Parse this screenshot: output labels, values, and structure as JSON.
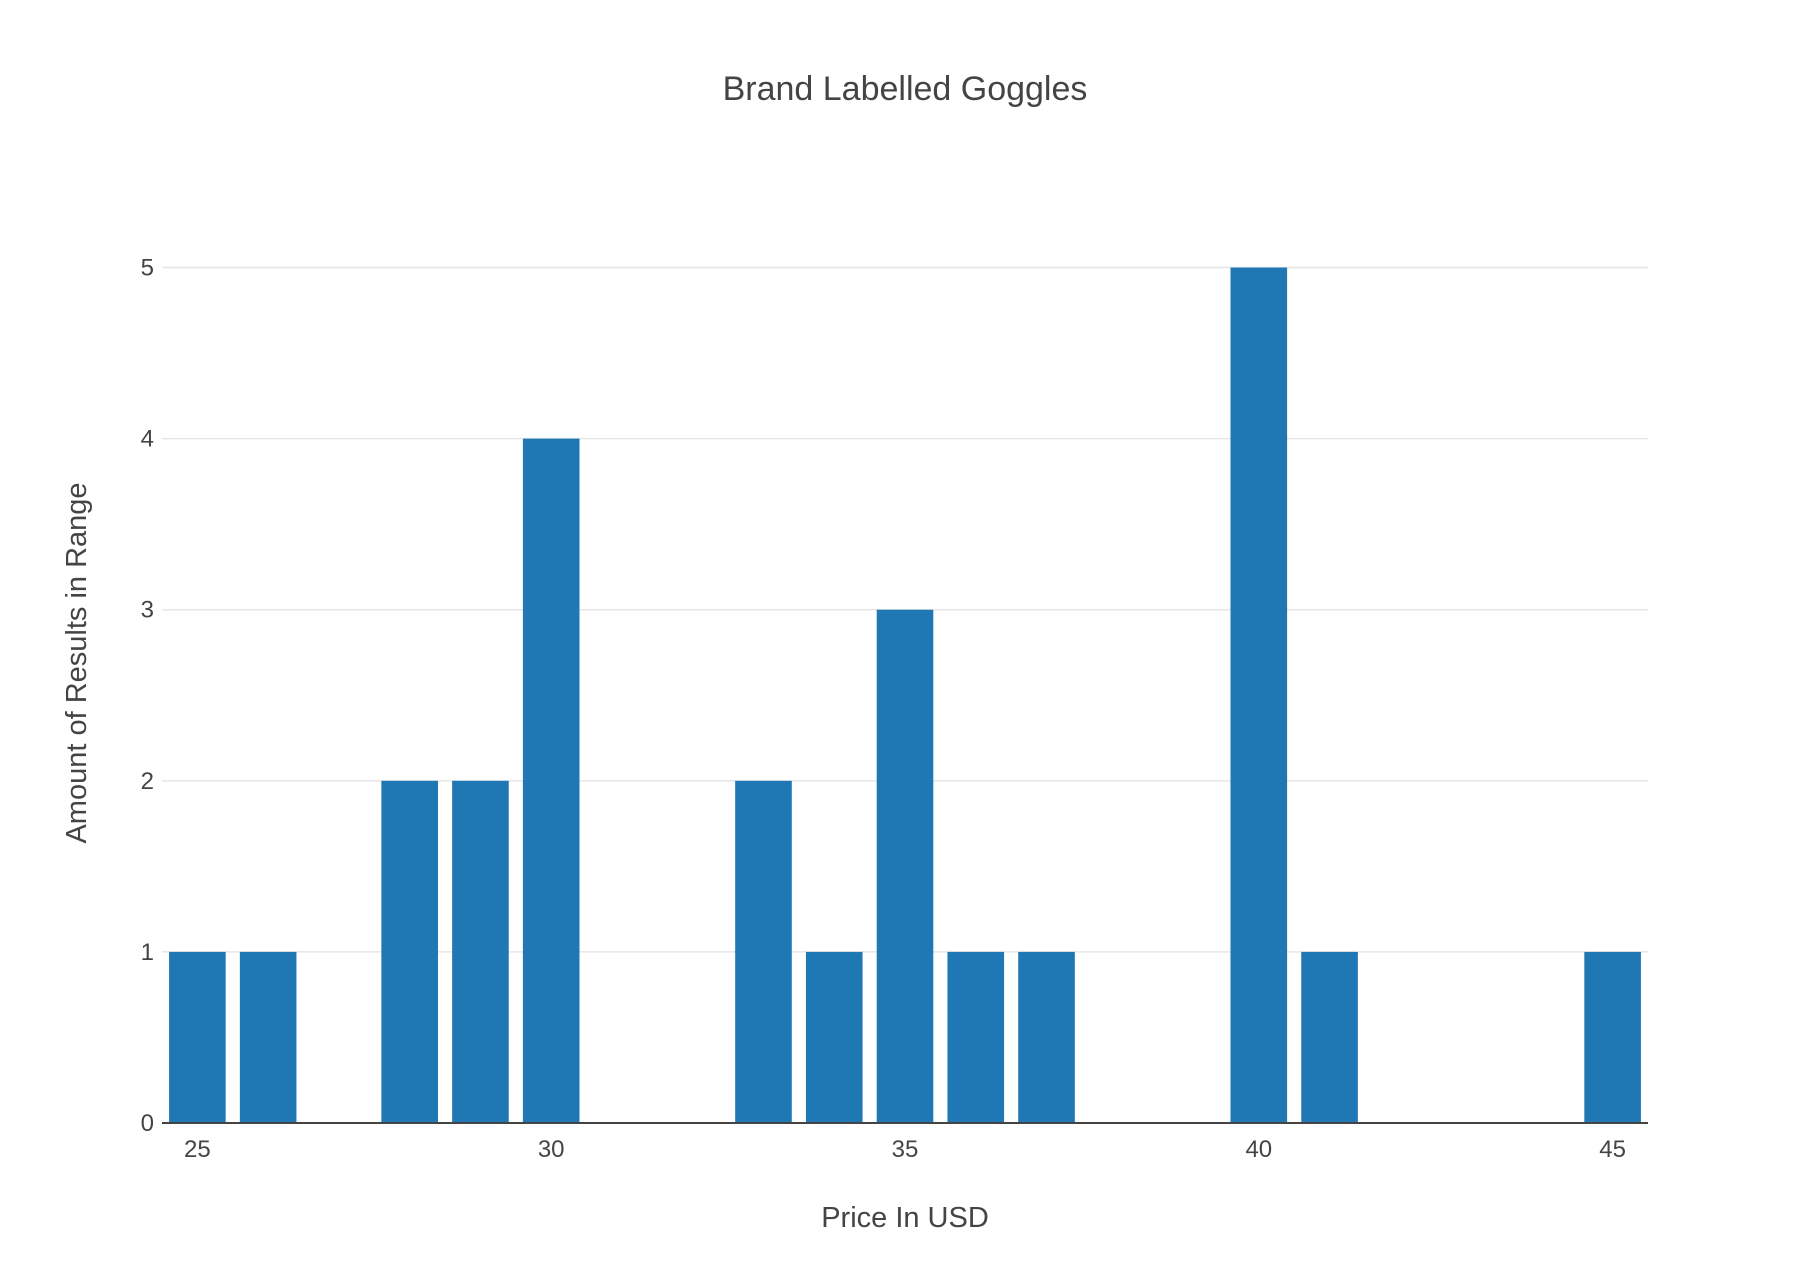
{
  "chart_data": {
    "type": "bar",
    "title": "Brand Labelled Goggles",
    "xlabel": "Price In USD",
    "ylabel": "Amount of Results in Range",
    "x": [
      25,
      26,
      28,
      29,
      30,
      33,
      34,
      35,
      36,
      37,
      40,
      41,
      45
    ],
    "values": [
      1,
      1,
      2,
      2,
      4,
      2,
      1,
      3,
      1,
      1,
      5,
      1,
      1
    ],
    "xlim": [
      24.5,
      45.5
    ],
    "ylim": [
      0,
      5.5
    ],
    "x_ticks": [
      25,
      30,
      35,
      40,
      45
    ],
    "y_ticks": [
      0,
      1,
      2,
      3,
      4,
      5
    ],
    "grid": "horizontal",
    "legend": "none",
    "bar_color": "#1f77b4"
  }
}
